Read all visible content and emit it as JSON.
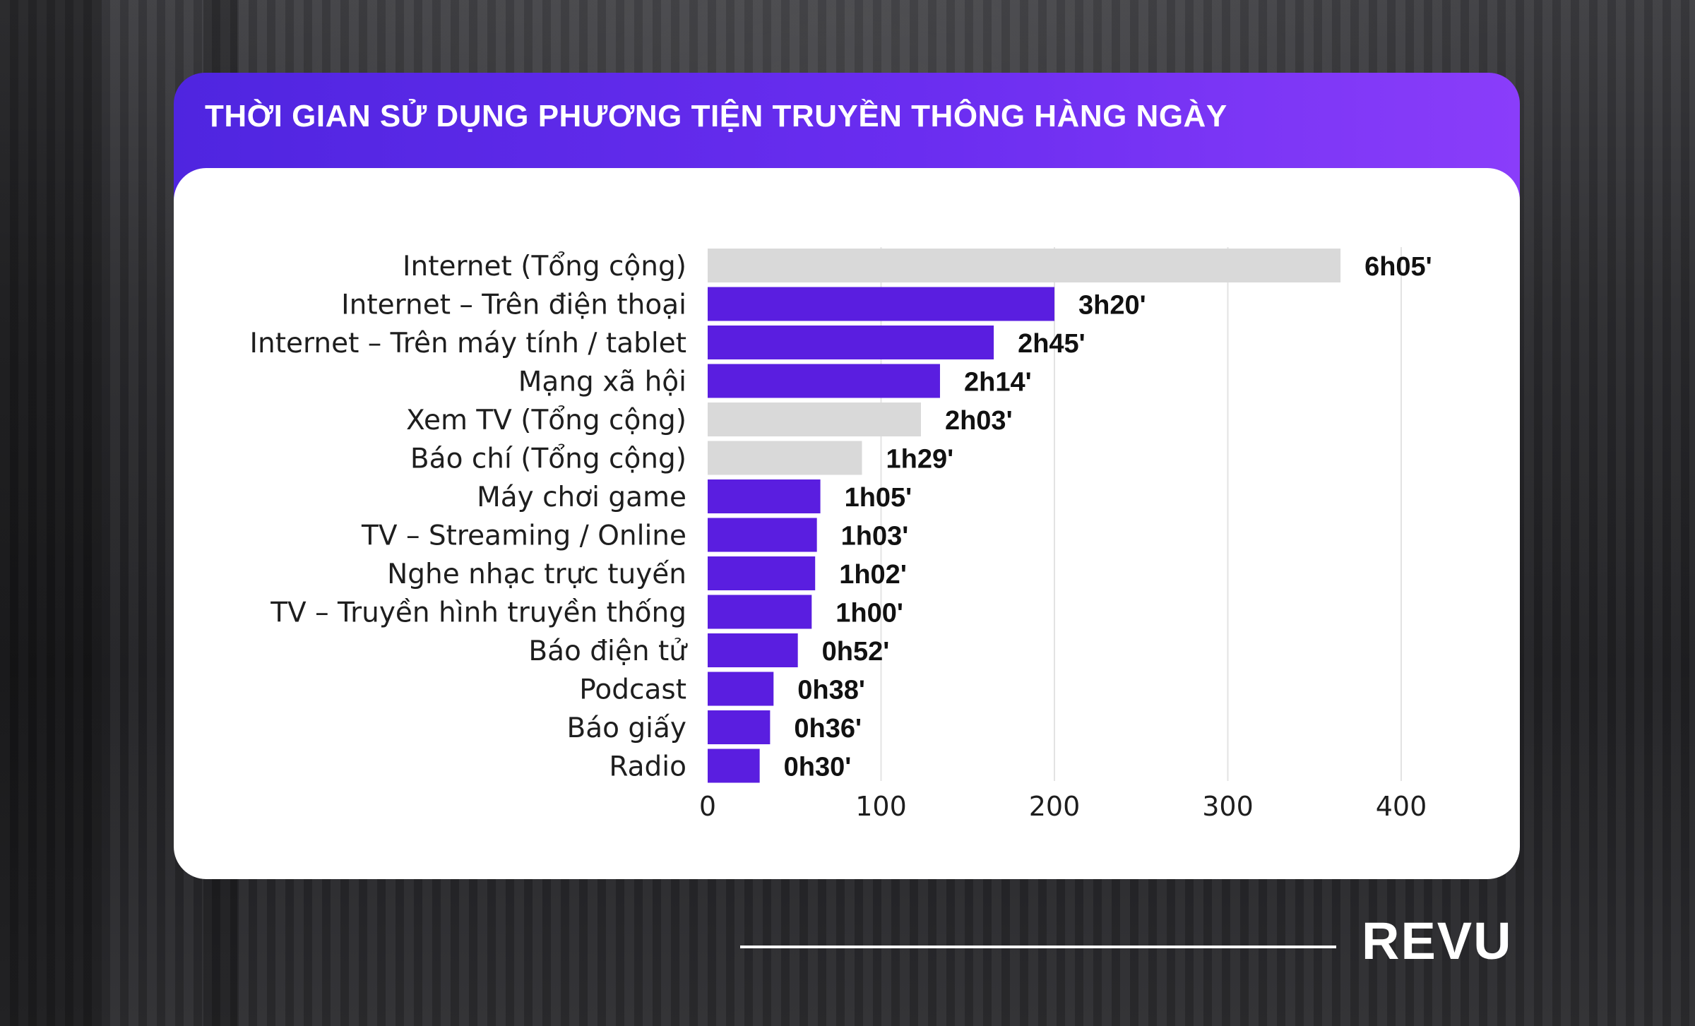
{
  "title": "THỜI GIAN SỬ DỤNG PHƯƠNG TIỆN TRUYỀN THÔNG HÀNG NGÀY",
  "brand": "REVU",
  "colors": {
    "highlight": "#5a1ee0",
    "total": "#d9d9d9",
    "header": "#6a2df0"
  },
  "chart_data": {
    "type": "bar",
    "orientation": "horizontal",
    "xlim": [
      0,
      400
    ],
    "ticks": [
      0,
      100,
      200,
      300,
      400
    ],
    "grid": true,
    "categories": [
      "Internet (Tổng cộng)",
      "Internet – Trên điện thoại",
      "Internet – Trên máy tính / tablet",
      "Mạng xã hội",
      "Xem TV (Tổng cộng)",
      "Báo chí (Tổng cộng)",
      "Máy chơi game",
      "TV – Streaming / Online",
      "Nghe nhạc trực tuyến",
      "TV – Truyền hình truyền thống",
      "Báo điện tử",
      "Podcast",
      "Báo giấy",
      "Radio"
    ],
    "values": [
      365,
      200,
      165,
      134,
      123,
      89,
      65,
      63,
      62,
      60,
      52,
      38,
      36,
      30
    ],
    "labels": [
      "6h05'",
      "3h20'",
      "2h45'",
      "2h14'",
      "2h03'",
      "1h29'",
      "1h05'",
      "1h03'",
      "1h02'",
      "1h00'",
      "0h52'",
      "0h38'",
      "0h36'",
      "0h30'"
    ],
    "is_total": [
      true,
      false,
      false,
      false,
      true,
      true,
      false,
      false,
      false,
      false,
      false,
      false,
      false,
      false
    ]
  }
}
